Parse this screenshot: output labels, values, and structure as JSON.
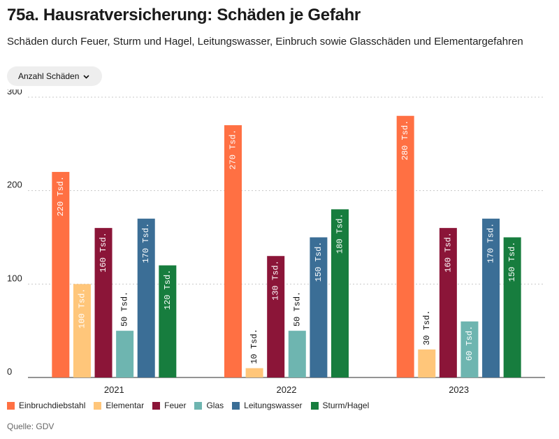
{
  "header": {
    "title": "75a. Hausratversicherung: Schäden je Gefahr",
    "subtitle": "Schäden durch Feuer, Sturm und Hagel, Leitungswasser, Einbruch sowie Glasschäden und Elementargefahren"
  },
  "controls": {
    "metric_label": "Anzahl Schäden",
    "chevron_icon": "chevron-down-icon"
  },
  "source": "Quelle: GDV",
  "chart_data": {
    "type": "bar",
    "categories": [
      "2021",
      "2022",
      "2023"
    ],
    "ylim": [
      0,
      300
    ],
    "yticks": [
      0,
      100,
      200,
      300
    ],
    "grid": true,
    "legend_position": "bottom",
    "value_suffix": " Tsd.",
    "series": [
      {
        "name": "Einbruchdiebstahl",
        "color": "#ff7043",
        "values": [
          220,
          270,
          280
        ]
      },
      {
        "name": "Elementar",
        "color": "#ffc67a",
        "values": [
          100,
          10,
          30
        ]
      },
      {
        "name": "Feuer",
        "color": "#8b1538",
        "values": [
          160,
          130,
          160
        ]
      },
      {
        "name": "Glas",
        "color": "#6eb5b0",
        "values": [
          50,
          50,
          60
        ]
      },
      {
        "name": "Leitungswasser",
        "color": "#3b6e96",
        "values": [
          170,
          150,
          170
        ]
      },
      {
        "name": "Sturm/Hagel",
        "color": "#177d3e",
        "values": [
          120,
          180,
          150
        ]
      }
    ]
  }
}
